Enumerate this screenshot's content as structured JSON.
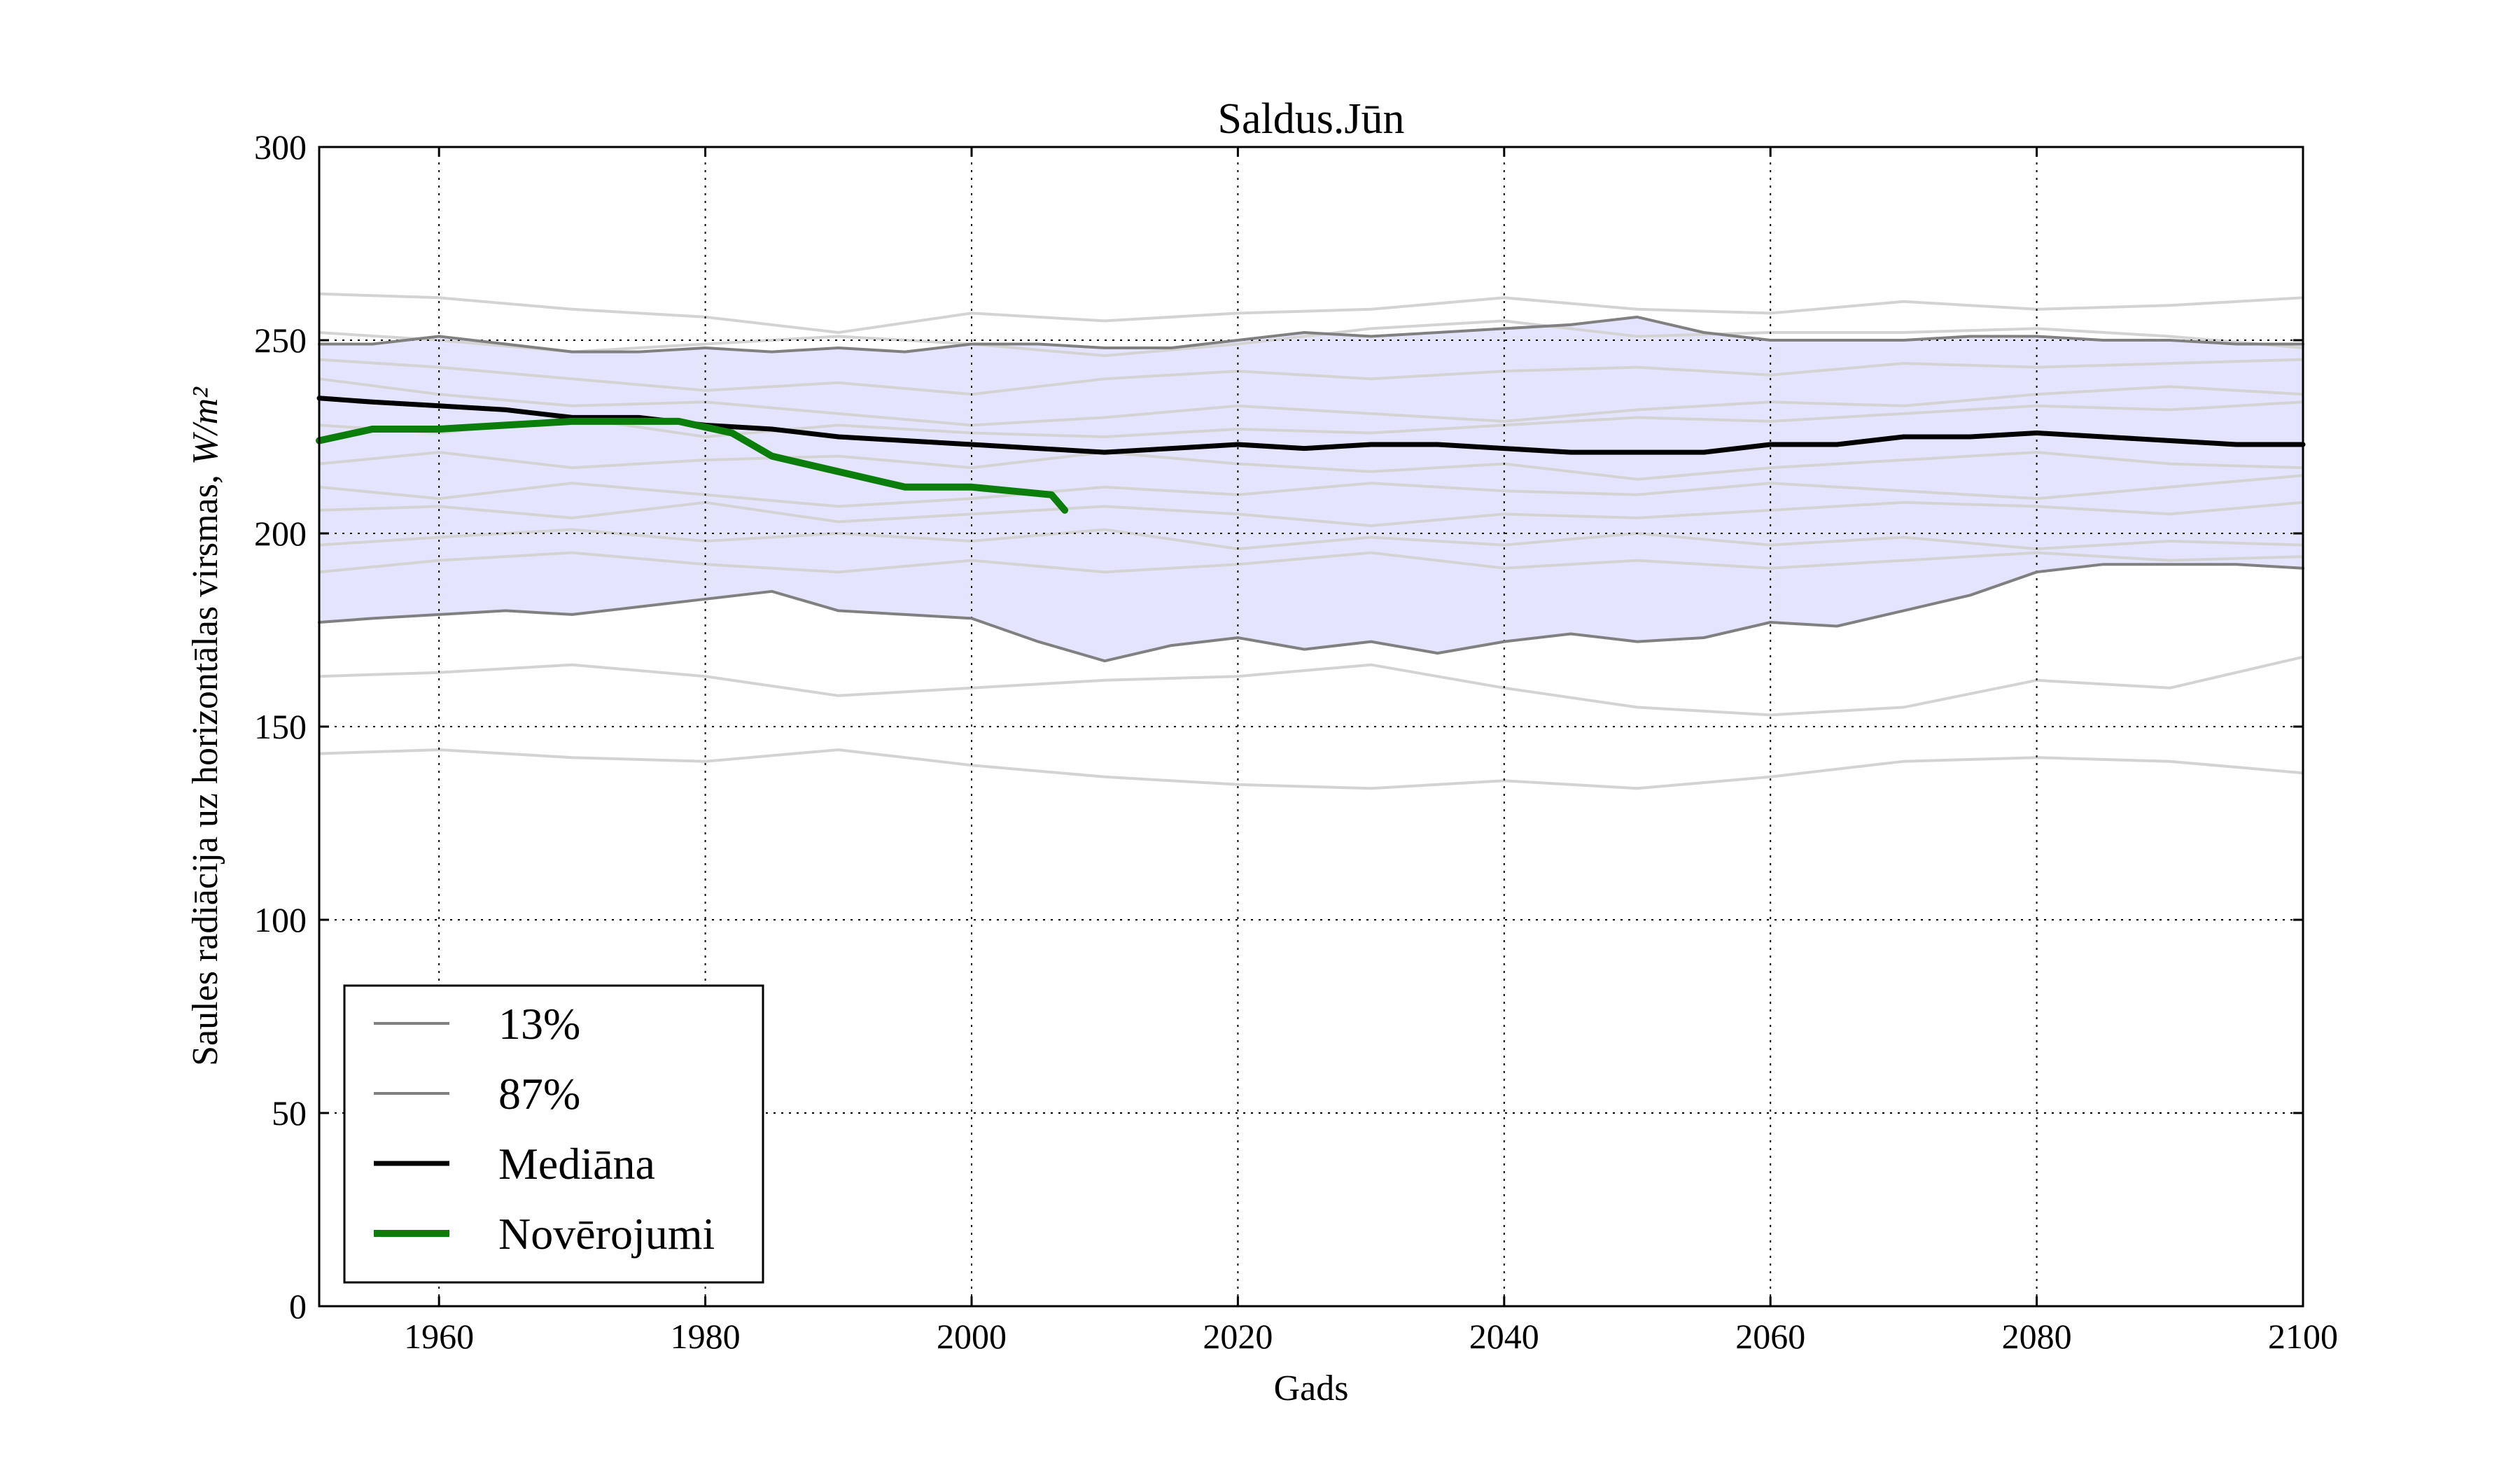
{
  "chart_data": {
    "type": "line",
    "title": "Saldus.Jūn",
    "xlabel": "Gads",
    "ylabel": "Saules radiācija uz horizontālas virsmas,",
    "ylabel_unit": "W/m²",
    "xlim": [
      1951,
      2100
    ],
    "ylim": [
      0,
      300
    ],
    "xticks": [
      "1960",
      "1980",
      "2000",
      "2020",
      "2040",
      "2060",
      "2080",
      "2100"
    ],
    "yticks": [
      "0",
      "50",
      "100",
      "150",
      "200",
      "250",
      "300"
    ],
    "grid": true,
    "legend_position": "lower-left",
    "colors": {
      "band_fill": "#e4e4ff",
      "percentile": "#808080",
      "median": "#000000",
      "observations": "#0a7d0a",
      "ensemble": "#d3d3d3"
    },
    "series": [
      {
        "name": "13%",
        "x": [
          1951,
          1955,
          1960,
          1965,
          1970,
          1975,
          1980,
          1985,
          1990,
          1995,
          2000,
          2005,
          2010,
          2015,
          2020,
          2025,
          2030,
          2035,
          2040,
          2045,
          2050,
          2055,
          2060,
          2065,
          2070,
          2075,
          2080,
          2085,
          2090,
          2095,
          2100
        ],
        "y": [
          177,
          178,
          179,
          180,
          179,
          181,
          183,
          185,
          180,
          179,
          178,
          172,
          167,
          171,
          173,
          170,
          172,
          169,
          172,
          174,
          172,
          173,
          177,
          176,
          180,
          184,
          190,
          192,
          192,
          192,
          191
        ]
      },
      {
        "name": "87%",
        "x": [
          1951,
          1955,
          1960,
          1965,
          1970,
          1975,
          1980,
          1985,
          1990,
          1995,
          2000,
          2005,
          2010,
          2015,
          2020,
          2025,
          2030,
          2035,
          2040,
          2045,
          2050,
          2055,
          2060,
          2065,
          2070,
          2075,
          2080,
          2085,
          2090,
          2095,
          2100
        ],
        "y": [
          249,
          249,
          251,
          249,
          247,
          247,
          248,
          247,
          248,
          247,
          249,
          249,
          248,
          248,
          250,
          252,
          251,
          252,
          253,
          254,
          256,
          252,
          250,
          250,
          250,
          251,
          251,
          250,
          250,
          249,
          249
        ]
      },
      {
        "name": "Mediāna",
        "x": [
          1951,
          1955,
          1960,
          1965,
          1970,
          1975,
          1980,
          1985,
          1990,
          1995,
          2000,
          2005,
          2010,
          2015,
          2020,
          2025,
          2030,
          2035,
          2040,
          2045,
          2050,
          2055,
          2060,
          2065,
          2070,
          2075,
          2080,
          2085,
          2090,
          2095,
          2100
        ],
        "y": [
          235,
          234,
          233,
          232,
          230,
          230,
          228,
          227,
          225,
          224,
          223,
          222,
          221,
          222,
          223,
          222,
          223,
          223,
          222,
          221,
          221,
          221,
          223,
          223,
          225,
          225,
          226,
          225,
          224,
          223,
          223
        ]
      },
      {
        "name": "Novērojumi",
        "x": [
          1951,
          1955,
          1960,
          1965,
          1970,
          1975,
          1978,
          1982,
          1985,
          1990,
          1995,
          2000,
          2003,
          2006,
          2007
        ],
        "y": [
          224,
          227,
          227,
          228,
          229,
          229,
          229,
          226,
          220,
          216,
          212,
          212,
          211,
          210,
          206
        ]
      }
    ],
    "ensemble_members": [
      {
        "x": [
          1951,
          1960,
          1970,
          1980,
          1990,
          2000,
          2010,
          2020,
          2030,
          2040,
          2050,
          2060,
          2070,
          2080,
          2090,
          2100
        ],
        "y": [
          262,
          261,
          258,
          256,
          252,
          257,
          255,
          257,
          258,
          261,
          258,
          257,
          260,
          258,
          259,
          261
        ]
      },
      {
        "x": [
          1951,
          1960,
          1970,
          1980,
          1990,
          2000,
          2010,
          2020,
          2030,
          2040,
          2050,
          2060,
          2070,
          2080,
          2090,
          2100
        ],
        "y": [
          252,
          250,
          247,
          249,
          251,
          249,
          246,
          249,
          253,
          255,
          251,
          252,
          252,
          253,
          251,
          248
        ]
      },
      {
        "x": [
          1951,
          1960,
          1970,
          1980,
          1990,
          2000,
          2010,
          2020,
          2030,
          2040,
          2050,
          2060,
          2070,
          2080,
          2090,
          2100
        ],
        "y": [
          245,
          243,
          240,
          237,
          239,
          236,
          240,
          242,
          240,
          242,
          243,
          241,
          244,
          243,
          244,
          245
        ]
      },
      {
        "x": [
          1951,
          1960,
          1970,
          1980,
          1990,
          2000,
          2010,
          2020,
          2030,
          2040,
          2050,
          2060,
          2070,
          2080,
          2090,
          2100
        ],
        "y": [
          240,
          236,
          233,
          234,
          231,
          228,
          230,
          233,
          231,
          229,
          232,
          234,
          233,
          236,
          238,
          236
        ]
      },
      {
        "x": [
          1951,
          1960,
          1970,
          1980,
          1990,
          2000,
          2010,
          2020,
          2030,
          2040,
          2050,
          2060,
          2070,
          2080,
          2090,
          2100
        ],
        "y": [
          228,
          226,
          230,
          225,
          228,
          226,
          225,
          227,
          226,
          228,
          230,
          229,
          231,
          233,
          232,
          234
        ]
      },
      {
        "x": [
          1951,
          1960,
          1970,
          1980,
          1990,
          2000,
          2010,
          2020,
          2030,
          2040,
          2050,
          2060,
          2070,
          2080,
          2090,
          2100
        ],
        "y": [
          218,
          221,
          217,
          219,
          220,
          217,
          221,
          218,
          216,
          218,
          214,
          217,
          219,
          221,
          218,
          217
        ]
      },
      {
        "x": [
          1951,
          1960,
          1970,
          1980,
          1990,
          2000,
          2010,
          2020,
          2030,
          2040,
          2050,
          2060,
          2070,
          2080,
          2090,
          2100
        ],
        "y": [
          212,
          209,
          213,
          210,
          207,
          209,
          212,
          210,
          213,
          211,
          210,
          213,
          211,
          209,
          212,
          215
        ]
      },
      {
        "x": [
          1951,
          1960,
          1970,
          1980,
          1990,
          2000,
          2010,
          2020,
          2030,
          2040,
          2050,
          2060,
          2070,
          2080,
          2090,
          2100
        ],
        "y": [
          206,
          207,
          204,
          208,
          203,
          205,
          207,
          205,
          202,
          205,
          204,
          206,
          208,
          207,
          205,
          208
        ]
      },
      {
        "x": [
          1951,
          1960,
          1970,
          1980,
          1990,
          2000,
          2010,
          2020,
          2030,
          2040,
          2050,
          2060,
          2070,
          2080,
          2090,
          2100
        ],
        "y": [
          197,
          199,
          201,
          198,
          200,
          198,
          201,
          196,
          199,
          197,
          200,
          197,
          199,
          196,
          198,
          197
        ]
      },
      {
        "x": [
          1951,
          1960,
          1970,
          1980,
          1990,
          2000,
          2010,
          2020,
          2030,
          2040,
          2050,
          2060,
          2070,
          2080,
          2090,
          2100
        ],
        "y": [
          190,
          193,
          195,
          192,
          190,
          193,
          190,
          192,
          195,
          191,
          193,
          191,
          193,
          195,
          193,
          194
        ]
      },
      {
        "x": [
          1951,
          1960,
          1970,
          1980,
          1990,
          2000,
          2010,
          2020,
          2030,
          2040,
          2050,
          2060,
          2070,
          2080,
          2090,
          2100
        ],
        "y": [
          163,
          164,
          166,
          163,
          158,
          160,
          162,
          163,
          166,
          160,
          155,
          153,
          155,
          162,
          160,
          168
        ]
      },
      {
        "x": [
          1951,
          1960,
          1970,
          1980,
          1990,
          2000,
          2010,
          2020,
          2030,
          2040,
          2050,
          2060,
          2070,
          2080,
          2090,
          2100
        ],
        "y": [
          143,
          144,
          142,
          141,
          144,
          140,
          137,
          135,
          134,
          136,
          134,
          137,
          141,
          142,
          141,
          138
        ]
      }
    ]
  }
}
